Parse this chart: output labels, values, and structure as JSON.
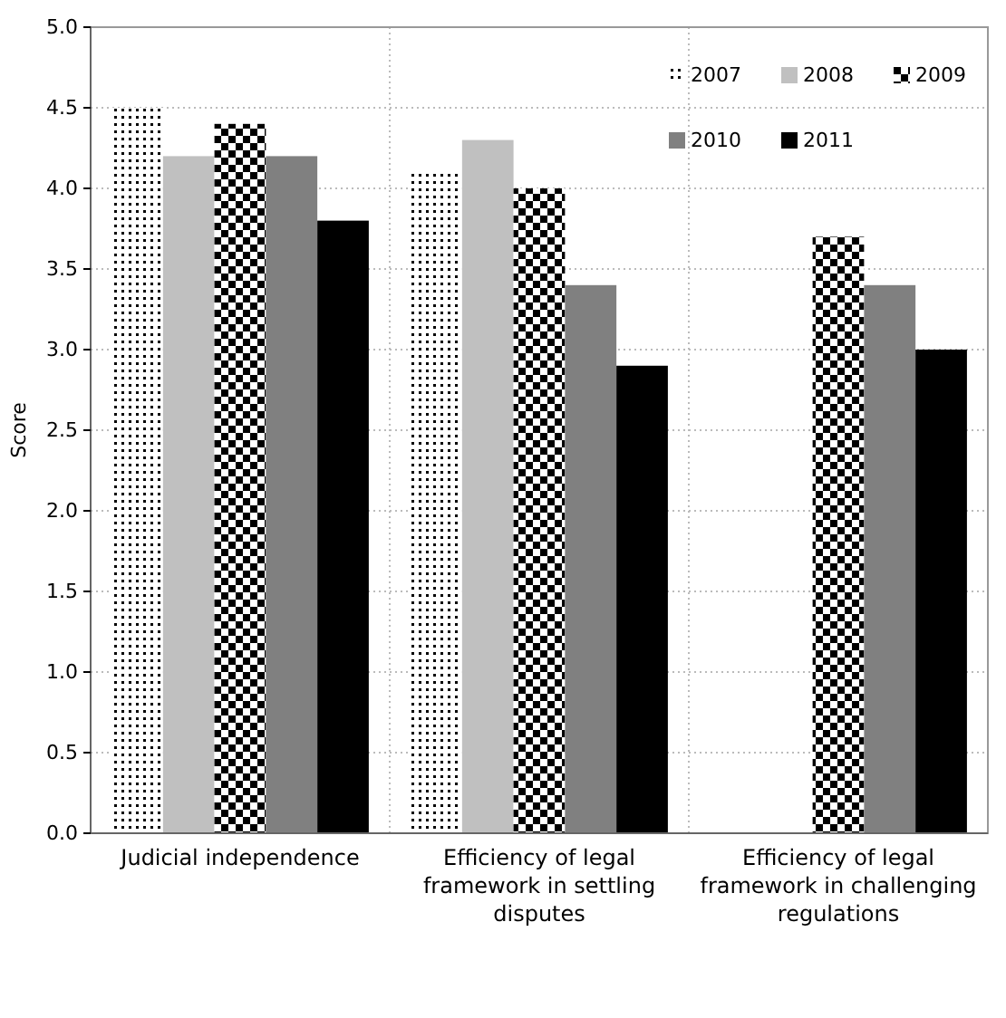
{
  "chart_data": {
    "type": "bar",
    "ylabel": "Score",
    "categories": [
      "Judicial independence",
      "Efficiency of legal framework in settling disputes",
      "Efficiency of legal framework in challenging regulations"
    ],
    "series": [
      {
        "name": "2007",
        "color": "#000000",
        "values": [
          4.5,
          4.1,
          null
        ]
      },
      {
        "name": "2008",
        "color": "#c0c0c0",
        "values": [
          4.2,
          4.3,
          null
        ]
      },
      {
        "name": "2009",
        "color": "#000000",
        "values": [
          4.4,
          4.0,
          3.7
        ]
      },
      {
        "name": "2010",
        "color": "#808080",
        "values": [
          4.2,
          3.4,
          3.4
        ]
      },
      {
        "name": "2011",
        "color": "#000000",
        "values": [
          3.8,
          2.9,
          3.0
        ]
      }
    ],
    "ylim": [
      0,
      5
    ],
    "yticks": [
      {
        "value": 0,
        "label": "0.0"
      },
      {
        "value": 0.5,
        "label": "0.5"
      },
      {
        "value": 1,
        "label": "1.0"
      },
      {
        "value": 1.5,
        "label": "1.5"
      },
      {
        "value": 2,
        "label": "2.0"
      },
      {
        "value": 2.5,
        "label": "2.5"
      },
      {
        "value": 3,
        "label": "3.0"
      },
      {
        "value": 3.5,
        "label": "3.5"
      },
      {
        "value": 4,
        "label": "4.0"
      },
      {
        "value": 4.5,
        "label": "4.5"
      },
      {
        "value": 5,
        "label": "5.0"
      }
    ],
    "grid": true,
    "legend": "top right"
  }
}
